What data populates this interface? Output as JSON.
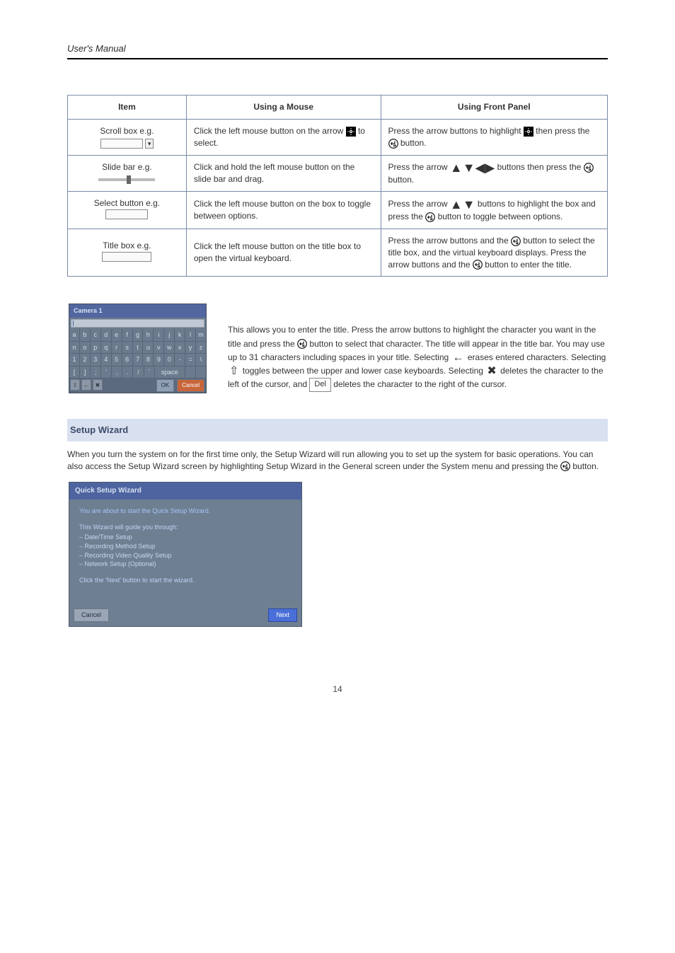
{
  "header": {
    "manual": "User's Manual"
  },
  "table": {
    "headers": [
      "Item",
      "Using a Mouse",
      "Using Front Panel"
    ],
    "rows": [
      {
        "item_prefix": "Scroll box e.g.",
        "item_suffix": "",
        "mouse": "Click the left mouse button on the arrow ▢ to select.",
        "front": "Press the arrow buttons to highlight ▢ then press the 𝄞 button."
      },
      {
        "item_prefix": "Slide bar e.g.",
        "item_suffix": "",
        "mouse": "Click and hold the left mouse button on the slide bar and drag.",
        "front": "Press the arrow ▲▼◀▶ buttons then press the 𝄞 button."
      },
      {
        "item_prefix": "Select button e.g.",
        "item_suffix": "",
        "mouse": "Click the left mouse button on the box to toggle between options.",
        "front": "Press the arrow ▲▼ buttons to highlight the box and press the 𝄞 button to toggle between options."
      },
      {
        "item_prefix": "Title box e.g.",
        "item_suffix": "",
        "mouse": "Click the left mouse button on the title box to open the virtual keyboard.",
        "front": "Press the arrow buttons and the 𝄞 button to select the title box, and the virtual keyboard displays. Press the arrow buttons and the 𝄞 button to enter the title."
      }
    ]
  },
  "note": {
    "intro": "This allows you to enter the title. Press the arrow buttons to highlight the character you want in the title and press the",
    "after_enter": "button to select that character. The title will appear in the title bar. You may use up to 31 characters including spaces in your title. Selecting",
    "after_back": "erases entered characters. Selecting",
    "after_shift": "toggles between the upper and lower case keyboards. Selecting",
    "after_x": "deletes the character to the left of the cursor, and",
    "tail": "deletes the character to the right of the cursor."
  },
  "keyboard_figure": {
    "title": "Camera 1",
    "rows": [
      [
        "a",
        "b",
        "c",
        "d",
        "e",
        "f",
        "g",
        "h",
        "i",
        "j",
        "k",
        "l",
        "m"
      ],
      [
        "n",
        "o",
        "p",
        "q",
        "r",
        "s",
        "t",
        "u",
        "v",
        "w",
        "x",
        "y",
        "z"
      ],
      [
        "1",
        "2",
        "3",
        "4",
        "5",
        "6",
        "7",
        "8",
        "9",
        "0",
        "-",
        "=",
        "\\"
      ],
      [
        "[",
        "]",
        ";",
        "'",
        ",",
        ".",
        "/",
        "`"
      ]
    ],
    "space_label": "space",
    "ok_label": "OK",
    "cancel_label": "Cancel"
  },
  "setup_wizard_heading": "Setup Wizard",
  "setup_wizard_intro": "When you turn the system on for the first time only, the Setup Wizard will run allowing you to set up the system for basic operations. You can also access the Setup Wizard screen by highlighting Setup Wizard in the General screen under the System menu and pressing the 𝄞 button.",
  "wizard": {
    "title": "Quick Setup Wizard",
    "lead": "You are about to start the Quick Setup Wizard.",
    "guide_intro": "This Wizard will guide you through:",
    "items": [
      "Date/Time Setup",
      "Recording Method Setup",
      "Recording Video Quality Setup",
      "Network Setup (Optional)"
    ],
    "click_next": "Click the 'Next' button to start the wizard.",
    "cancel": "Cancel",
    "next": "Next"
  },
  "page_number": "14",
  "colors": {
    "section_bg": "#d9e1f0",
    "section_fg": "#3c4a6a",
    "kbd_bg": "#6b7a8c",
    "kbd_title_bg": "#5266a0",
    "kbd_cancel": "#c8663a",
    "wizard_bg": "#6f7f92",
    "wizard_title_bg": "#4e64a0",
    "wizard_next_bg": "#4a6fd8"
  }
}
